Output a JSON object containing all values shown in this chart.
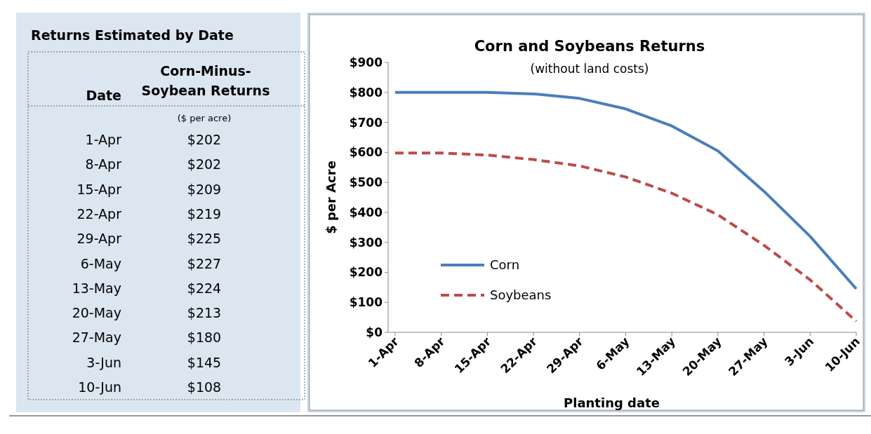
{
  "chart_data": [
    {
      "type": "other",
      "title": "Returns Estimated by Date",
      "xlabel": "Date",
      "ylabel": "Corn-Minus-Soybean Returns",
      "subtitle": "($ per acre)",
      "categories": [
        "1-Apr",
        "8-Apr",
        "15-Apr",
        "22-Apr",
        "29-Apr",
        "6-May",
        "13-May",
        "20-May",
        "27-May",
        "3-Jun",
        "10-Jun"
      ],
      "value_labels": [
        "$202",
        "$202",
        "$209",
        "$219",
        "$225",
        "$227",
        "$224",
        "$213",
        "$180",
        "$145",
        "$108"
      ]
    },
    {
      "type": "line",
      "title": "Corn and Soybeans Returns",
      "subtitle": "(without land costs)",
      "xlabel": "Planting date",
      "ylabel": "$ per Acre",
      "categories": [
        "1-Apr",
        "8-Apr",
        "15-Apr",
        "22-Apr",
        "29-Apr",
        "6-May",
        "13-May",
        "20-May",
        "27-May",
        "3-Jun",
        "10-Jun"
      ],
      "series": [
        {
          "name": "Corn",
          "color": "#4a7ebb",
          "line_style": "solid",
          "values": [
            800,
            800,
            800,
            795,
            780,
            745,
            688,
            605,
            470,
            320,
            145
          ]
        },
        {
          "name": "Soybeans",
          "color": "#be4b48",
          "line_style": "dashed",
          "values": [
            598,
            598,
            591,
            576,
            555,
            518,
            464,
            392,
            290,
            175,
            37
          ]
        }
      ],
      "ylim": [
        0,
        900
      ],
      "yticks": [
        {
          "value": 0,
          "label": "$0"
        },
        {
          "value": 100,
          "label": "$100"
        },
        {
          "value": 200,
          "label": "$200"
        },
        {
          "value": 300,
          "label": "$300"
        },
        {
          "value": 400,
          "label": "$400"
        },
        {
          "value": 500,
          "label": "$500"
        },
        {
          "value": 600,
          "label": "$600"
        },
        {
          "value": 700,
          "label": "$700"
        },
        {
          "value": 800,
          "label": "$800"
        },
        {
          "value": 900,
          "label": "$900"
        }
      ],
      "legend": "left",
      "grid": false
    }
  ]
}
